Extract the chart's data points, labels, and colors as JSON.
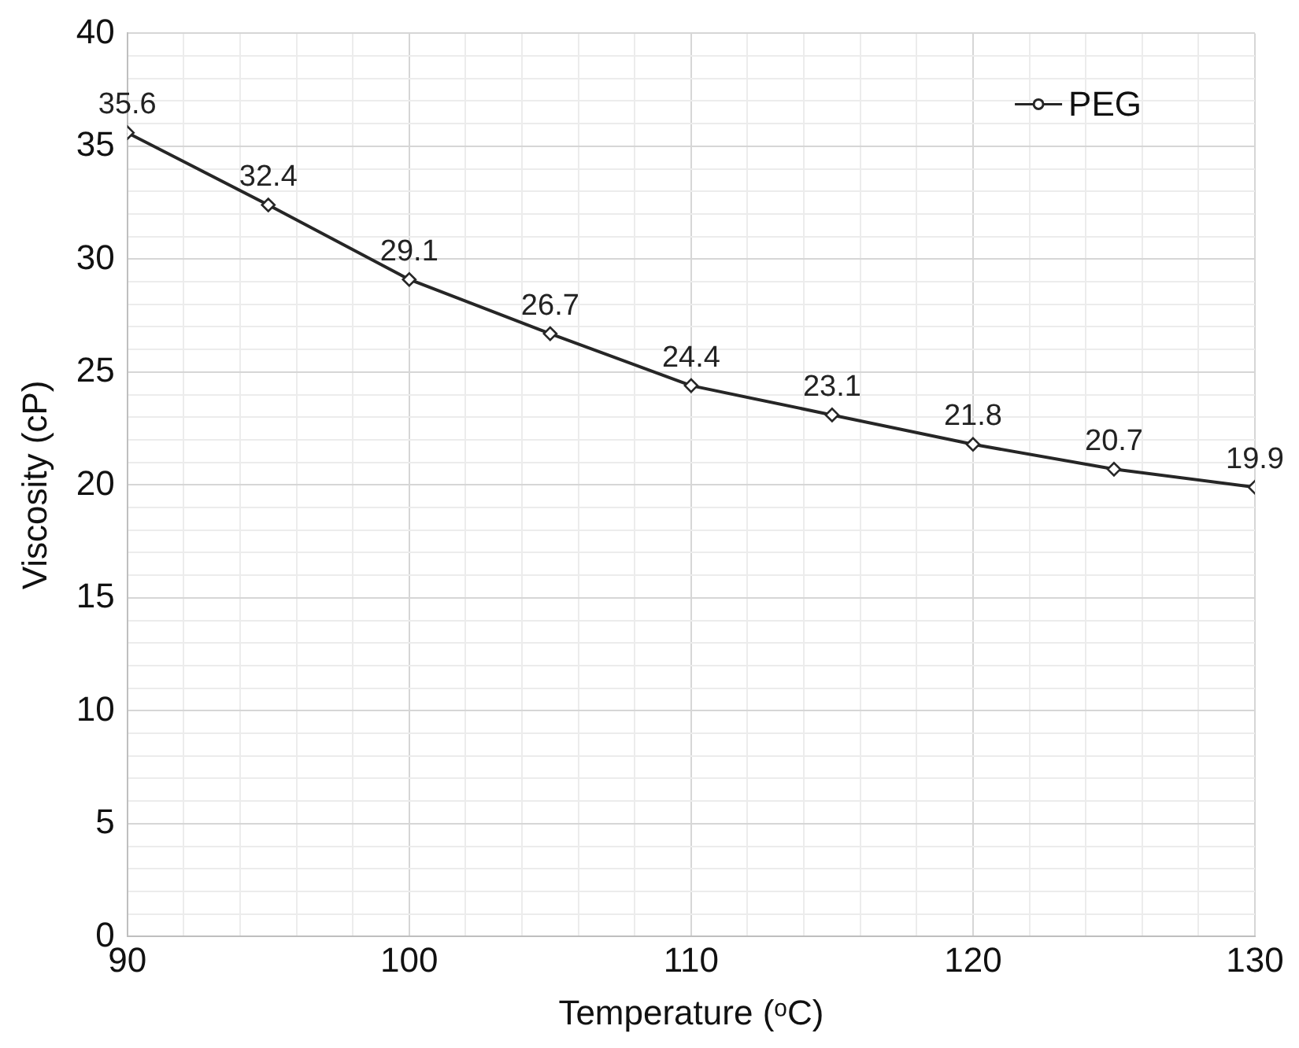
{
  "chart_data": {
    "type": "line",
    "xlabel": "Temperature (ᵒC)",
    "ylabel": "Viscosity (cP)",
    "x": [
      90,
      95,
      100,
      105,
      110,
      115,
      120,
      125,
      130
    ],
    "series": [
      {
        "name": "PEG",
        "color": "#262626",
        "values": [
          35.6,
          32.4,
          29.1,
          26.7,
          24.4,
          23.1,
          21.8,
          20.7,
          19.9
        ]
      }
    ],
    "xlim": [
      90,
      130
    ],
    "xticks": [
      90,
      {
        "value": 92,
        "label": null
      },
      {
        "value": 94,
        "label": null
      },
      {
        "value": 96,
        "label": null
      },
      {
        "value": 98,
        "label": null
      },
      100,
      {
        "value": 102,
        "label": null
      },
      {
        "value": 104,
        "label": null
      },
      {
        "value": 106,
        "label": null
      },
      {
        "value": 108,
        "label": null
      },
      110,
      {
        "value": 112,
        "label": null
      },
      {
        "value": 114,
        "label": null
      },
      {
        "value": 116,
        "label": null
      },
      {
        "value": 118,
        "label": null
      },
      120,
      {
        "value": 122,
        "label": null
      },
      {
        "value": 124,
        "label": null
      },
      {
        "value": 126,
        "label": null
      },
      {
        "value": 128,
        "label": null
      },
      130
    ],
    "ylim": [
      0,
      40
    ],
    "yticks": [
      0,
      {
        "value": 1,
        "label": null
      },
      {
        "value": 2,
        "label": null
      },
      {
        "value": 3,
        "label": null
      },
      {
        "value": 4,
        "label": null
      },
      5,
      {
        "value": 6,
        "label": null
      },
      {
        "value": 7,
        "label": null
      },
      {
        "value": 8,
        "label": null
      },
      {
        "value": 9,
        "label": null
      },
      10,
      {
        "value": 11,
        "label": null
      },
      {
        "value": 12,
        "label": null
      },
      {
        "value": 13,
        "label": null
      },
      {
        "value": 14,
        "label": null
      },
      15,
      {
        "value": 16,
        "label": null
      },
      {
        "value": 17,
        "label": null
      },
      {
        "value": 18,
        "label": null
      },
      {
        "value": 19,
        "label": null
      },
      20,
      {
        "value": 21,
        "label": null
      },
      {
        "value": 22,
        "label": null
      },
      {
        "value": 23,
        "label": null
      },
      {
        "value": 24,
        "label": null
      },
      25,
      {
        "value": 26,
        "label": null
      },
      {
        "value": 27,
        "label": null
      },
      {
        "value": 28,
        "label": null
      },
      {
        "value": 29,
        "label": null
      },
      30,
      {
        "value": 31,
        "label": null
      },
      {
        "value": 32,
        "label": null
      },
      {
        "value": 33,
        "label": null
      },
      {
        "value": 34,
        "label": null
      },
      35,
      {
        "value": 36,
        "label": null
      },
      {
        "value": 37,
        "label": null
      },
      {
        "value": 38,
        "label": null
      },
      {
        "value": 39,
        "label": null
      },
      40
    ],
    "grid": true,
    "legend": "top right",
    "marker": "diamond",
    "line_style": "solid",
    "data_labels": true
  }
}
